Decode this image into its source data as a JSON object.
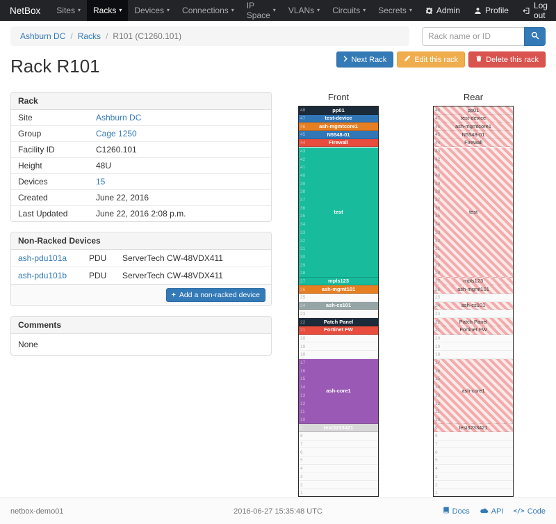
{
  "navbar": {
    "brand": "NetBox",
    "items": [
      {
        "label": "Sites"
      },
      {
        "label": "Racks"
      },
      {
        "label": "Devices"
      },
      {
        "label": "Connections"
      },
      {
        "label": "IP Space"
      },
      {
        "label": "VLANs"
      },
      {
        "label": "Circuits"
      },
      {
        "label": "Secrets"
      }
    ],
    "active_item": "Racks",
    "right_items": [
      {
        "label": "Admin",
        "icon": "gear-icon"
      },
      {
        "label": "Profile",
        "icon": "user-icon"
      },
      {
        "label": "Log out",
        "icon": "logout-icon"
      }
    ]
  },
  "breadcrumb": {
    "links": [
      "Ashburn DC",
      "Racks"
    ],
    "current": "R101 (C1260.101)"
  },
  "search": {
    "placeholder": "Rack name or ID"
  },
  "actions": {
    "next": "Next Rack",
    "edit": "Edit this rack",
    "delete": "Delete this rack"
  },
  "page_title": "Rack R101",
  "rack_panel": {
    "title": "Rack",
    "rows": [
      {
        "label": "Site",
        "value": "Ashburn DC",
        "link": true
      },
      {
        "label": "Group",
        "value": "Cage 1250",
        "link": true
      },
      {
        "label": "Facility ID",
        "value": "C1260.101",
        "link": false
      },
      {
        "label": "Height",
        "value": "48U",
        "link": false
      },
      {
        "label": "Devices",
        "value": "15",
        "link": true
      },
      {
        "label": "Created",
        "value": "June 22, 2016",
        "link": false
      },
      {
        "label": "Last Updated",
        "value": "June 22, 2016 2:08 p.m.",
        "link": false
      }
    ]
  },
  "nonracked_panel": {
    "title": "Non-Racked Devices",
    "rows": [
      {
        "name": "ash-pdu101a",
        "type": "PDU",
        "model": "ServerTech CW-48VDX411"
      },
      {
        "name": "ash-pdu101b",
        "type": "PDU",
        "model": "ServerTech CW-48VDX411"
      }
    ],
    "add_button": "Add a non-racked device"
  },
  "comments_panel": {
    "title": "Comments",
    "body": "None"
  },
  "elevations": {
    "front_title": "Front",
    "rear_title": "Rear",
    "units": 48,
    "devices": [
      {
        "name": "pp01",
        "u": 48,
        "h": 1,
        "color": "dark"
      },
      {
        "name": "test-device",
        "u": 47,
        "h": 1,
        "color": "blue"
      },
      {
        "name": "ash-mgmtcore1",
        "u": 46,
        "h": 1,
        "color": "orange"
      },
      {
        "name": "N5548-01",
        "u": 45,
        "h": 1,
        "color": "blue"
      },
      {
        "name": "Firewall",
        "u": 44,
        "h": 1,
        "color": "red"
      },
      {
        "name": "test",
        "u": 43,
        "h": 16,
        "color": "green"
      },
      {
        "name": "mpls123",
        "u": 27,
        "h": 1,
        "color": "green"
      },
      {
        "name": "ash-mgmt101",
        "u": 26,
        "h": 1,
        "color": "orange"
      },
      {
        "name": "ash-cs101",
        "u": 24,
        "h": 1,
        "color": "gray"
      },
      {
        "name": "Patch Panel",
        "u": 22,
        "h": 1,
        "color": "dark"
      },
      {
        "name": "Fortinet FW",
        "u": 21,
        "h": 1,
        "color": "red"
      },
      {
        "name": "ash-core1",
        "u": 17,
        "h": 8,
        "color": "purple"
      },
      {
        "name": "test3233421",
        "u": 9,
        "h": 1,
        "color": "lightgray"
      }
    ],
    "colors": {
      "dark": "#1c2b39",
      "blue": "#3177b8",
      "orange": "#e67e22",
      "red": "#e74c3c",
      "green": "#18bc9c",
      "gray": "#95a5a6",
      "purple": "#9b59b6",
      "lightgray": "#d9d9d9"
    }
  },
  "footer": {
    "hostname": "netbox-demo01",
    "timestamp": "2016-06-27 15:35:48 UTC",
    "links": [
      {
        "label": "Docs",
        "icon": "book-icon"
      },
      {
        "label": "API",
        "icon": "cloud-icon"
      },
      {
        "label": "Code",
        "icon": "code-icon"
      }
    ]
  }
}
